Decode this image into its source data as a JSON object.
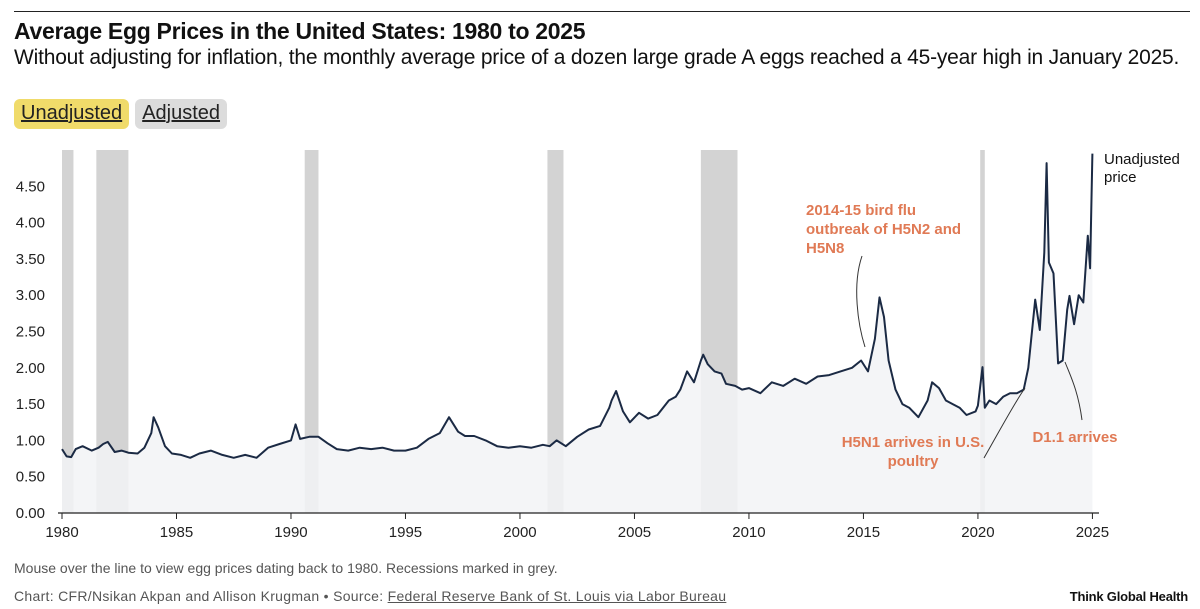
{
  "header": {
    "title": "Average Egg Prices in the United States: 1980 to 2025",
    "subtitle": "Without adjusting for inflation, the monthly average price of a dozen large grade A eggs reached a 45-year high in January 2025."
  },
  "toggles": [
    {
      "label": "Unadjusted",
      "active": true
    },
    {
      "label": "Adjusted",
      "active": false
    }
  ],
  "footer": {
    "note": "Mouse over the line to view egg prices dating back to 1980. Recessions marked in grey.",
    "credit_prefix": "Chart: CFR/Nsikan Akpan and Allison Krugman • Source: ",
    "credit_link": "Federal Reserve Bank of St. Louis via Labor Bureau",
    "brand": "Think Global Health"
  },
  "colors": {
    "line": "#1b2a44",
    "area": "#f2f3f6",
    "recession": "#d3d3d3",
    "annotation": "#e07a55",
    "toggle_active": "#f0db6a",
    "toggle_inactive": "#dcdcdc"
  },
  "chart_data": {
    "type": "line",
    "title": "Average Egg Prices in the United States: 1980 to 2025",
    "ylim": [
      0,
      5.0
    ],
    "xlim": [
      1980,
      2025.2
    ],
    "yticks": [
      0.0,
      0.5,
      1.0,
      1.5,
      2.0,
      2.5,
      3.0,
      3.5,
      4.0,
      4.5
    ],
    "ytick_labels": [
      "0.00",
      "0.50",
      "1.00",
      "1.50",
      "2.00",
      "2.50",
      "3.00",
      "3.50",
      "4.00",
      "4.50"
    ],
    "xticks": [
      1980,
      1985,
      1990,
      1995,
      2000,
      2005,
      2010,
      2015,
      2020,
      2025
    ],
    "xtick_labels": [
      "1980",
      "1985",
      "1990",
      "1995",
      "2000",
      "2005",
      "2010",
      "2015",
      "2020",
      "2025"
    ],
    "series": [
      {
        "name": "Unadjusted price",
        "x": [
          1980.0,
          1980.2,
          1980.4,
          1980.6,
          1980.9,
          1981.3,
          1981.6,
          1981.8,
          1982.0,
          1982.3,
          1982.6,
          1982.9,
          1983.3,
          1983.6,
          1983.9,
          1984.0,
          1984.2,
          1984.5,
          1984.8,
          1985.2,
          1985.6,
          1986.0,
          1986.5,
          1987.0,
          1987.5,
          1988.0,
          1988.5,
          1989.0,
          1989.5,
          1990.0,
          1990.2,
          1990.4,
          1990.8,
          1991.2,
          1991.6,
          1992.0,
          1992.5,
          1993.0,
          1993.5,
          1994.0,
          1994.5,
          1995.0,
          1995.5,
          1996.0,
          1996.5,
          1996.9,
          1997.3,
          1997.6,
          1998.0,
          1998.5,
          1999.0,
          1999.5,
          2000.0,
          2000.5,
          2001.0,
          2001.3,
          2001.6,
          2002.0,
          2002.5,
          2003.0,
          2003.5,
          2003.9,
          2004.0,
          2004.2,
          2004.5,
          2004.8,
          2005.2,
          2005.6,
          2006.0,
          2006.5,
          2006.8,
          2007.0,
          2007.3,
          2007.6,
          2007.9,
          2008.0,
          2008.2,
          2008.5,
          2008.8,
          2009.0,
          2009.4,
          2009.7,
          2010.0,
          2010.5,
          2011.0,
          2011.5,
          2012.0,
          2012.5,
          2013.0,
          2013.5,
          2014.0,
          2014.5,
          2014.9,
          2015.2,
          2015.5,
          2015.7,
          2015.9,
          2016.1,
          2016.4,
          2016.7,
          2017.0,
          2017.4,
          2017.8,
          2018.0,
          2018.3,
          2018.6,
          2018.9,
          2019.2,
          2019.5,
          2019.9,
          2020.0,
          2020.2,
          2020.3,
          2020.5,
          2020.8,
          2021.1,
          2021.4,
          2021.7,
          2022.0,
          2022.2,
          2022.5,
          2022.7,
          2022.9,
          2023.0,
          2023.1,
          2023.3,
          2023.5,
          2023.7,
          2023.9,
          2024.0,
          2024.2,
          2024.4,
          2024.6,
          2024.8,
          2024.9,
          2025.0
        ],
        "y": [
          0.88,
          0.78,
          0.77,
          0.88,
          0.92,
          0.86,
          0.9,
          0.95,
          0.98,
          0.84,
          0.86,
          0.83,
          0.82,
          0.9,
          1.1,
          1.32,
          1.18,
          0.92,
          0.82,
          0.8,
          0.76,
          0.82,
          0.86,
          0.8,
          0.76,
          0.8,
          0.76,
          0.9,
          0.95,
          1.0,
          1.22,
          1.02,
          1.05,
          1.05,
          0.96,
          0.88,
          0.86,
          0.9,
          0.88,
          0.9,
          0.86,
          0.86,
          0.9,
          1.02,
          1.1,
          1.32,
          1.12,
          1.06,
          1.06,
          1.0,
          0.92,
          0.9,
          0.92,
          0.9,
          0.94,
          0.92,
          1.0,
          0.92,
          1.05,
          1.15,
          1.2,
          1.45,
          1.55,
          1.68,
          1.4,
          1.25,
          1.38,
          1.3,
          1.35,
          1.55,
          1.6,
          1.7,
          1.95,
          1.8,
          2.1,
          2.18,
          2.05,
          1.95,
          1.92,
          1.78,
          1.75,
          1.7,
          1.72,
          1.65,
          1.8,
          1.75,
          1.85,
          1.78,
          1.88,
          1.9,
          1.95,
          2.0,
          2.1,
          1.95,
          2.4,
          2.97,
          2.7,
          2.1,
          1.7,
          1.5,
          1.45,
          1.32,
          1.55,
          1.8,
          1.72,
          1.55,
          1.5,
          1.45,
          1.35,
          1.4,
          1.48,
          2.01,
          1.45,
          1.55,
          1.5,
          1.6,
          1.65,
          1.65,
          1.7,
          2.0,
          2.94,
          2.52,
          3.59,
          4.82,
          3.45,
          3.3,
          2.06,
          2.1,
          2.8,
          2.99,
          2.6,
          3.0,
          2.9,
          3.82,
          3.37,
          4.95
        ],
        "raw_points_note": ""
      }
    ],
    "series_end_label": "Unadjusted price",
    "recessions": [
      [
        1980.0,
        1980.5
      ],
      [
        1981.5,
        1982.9
      ],
      [
        1990.6,
        1991.2
      ],
      [
        2001.2,
        2001.9
      ],
      [
        2007.9,
        2009.5
      ],
      [
        2020.1,
        2020.3
      ]
    ],
    "annotations": [
      {
        "text_lines": [
          "2014-15 bird flu",
          "outbreak of H5N2 and",
          "H5N8"
        ],
        "x": 2014.9,
        "y": 2.2
      },
      {
        "text_lines": [
          "H5N1 arrives in U.S.",
          "poultry"
        ],
        "x": 2022.0,
        "y": 1.65
      },
      {
        "text_lines": [
          "D1.1 arrives"
        ],
        "x": 2023.8,
        "y": 2.1
      }
    ]
  }
}
